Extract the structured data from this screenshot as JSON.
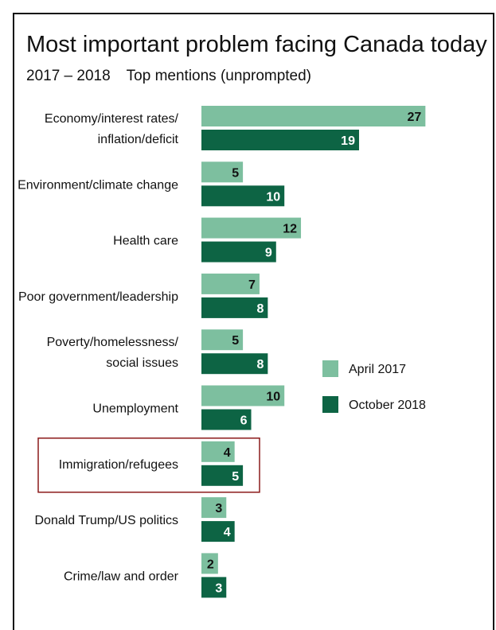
{
  "chart_data": {
    "type": "bar",
    "orientation": "horizontal",
    "title": "Most important problem facing Canada today",
    "subtitle": "2017 – 2018",
    "subtitle_note": "Top mentions (unprompted)",
    "categories": [
      [
        "Economy/interest rates/",
        "inflation/deficit"
      ],
      [
        "Environment/climate change"
      ],
      [
        "Health care"
      ],
      [
        "Poor government/leadership"
      ],
      [
        "Poverty/homelessness/",
        "social issues"
      ],
      [
        "Unemployment"
      ],
      [
        "Immigration/refugees"
      ],
      [
        "Donald Trump/US politics"
      ],
      [
        "Crime/law and order"
      ]
    ],
    "series": [
      {
        "name": "April 2017",
        "color": "#7dbf9f",
        "label_color": "#111111",
        "values": [
          27,
          5,
          12,
          7,
          5,
          10,
          4,
          3,
          2
        ]
      },
      {
        "name": "October 2018",
        "color": "#0d6444",
        "label_color": "#ffffff",
        "values": [
          19,
          10,
          9,
          8,
          8,
          6,
          5,
          4,
          3
        ]
      }
    ],
    "xlim": [
      0,
      30
    ],
    "highlighted_category": "Immigration/refugees",
    "highlight_color": "#8b1a1a",
    "legend_position": "right"
  }
}
